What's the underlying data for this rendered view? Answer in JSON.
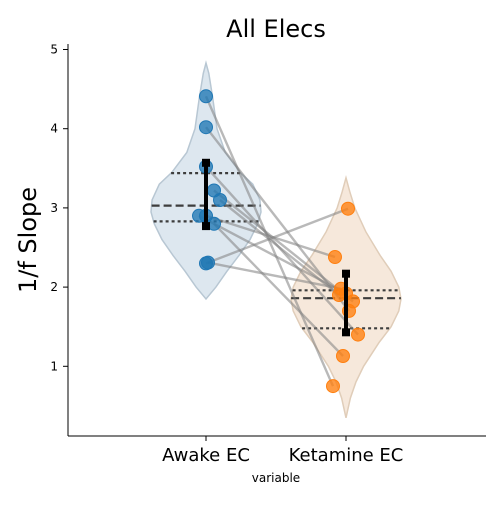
{
  "chart_data": {
    "type": "violin",
    "title": "All Elecs",
    "xlabel": "variable",
    "ylabel": "1/f Slope",
    "ylim": [
      0.12,
      5.07
    ],
    "yticks": [
      1,
      2,
      3,
      4,
      5
    ],
    "categories": [
      "Awake EC",
      "Ketamine EC"
    ],
    "grid": false,
    "colors": {
      "awake": "#1f77b4",
      "ketamine": "#ff7f0e",
      "awake_violin": "#dde7ef",
      "ketamine_violin": "#f6e8db",
      "lines": "#808080"
    },
    "violins": [
      {
        "category": "Awake EC",
        "range": [
          1.85,
          4.83
        ],
        "quartiles": [
          2.83,
          3.03,
          3.44
        ],
        "profile": [
          [
            4.83,
            0.0
          ],
          [
            4.7,
            0.05
          ],
          [
            4.4,
            0.12
          ],
          [
            4.0,
            0.2
          ],
          [
            3.7,
            0.35
          ],
          [
            3.45,
            0.62
          ],
          [
            3.3,
            0.85
          ],
          [
            3.1,
            0.98
          ],
          [
            2.95,
            1.0
          ],
          [
            2.8,
            0.94
          ],
          [
            2.6,
            0.8
          ],
          [
            2.4,
            0.6
          ],
          [
            2.2,
            0.38
          ],
          [
            2.0,
            0.18
          ],
          [
            1.85,
            0.0
          ]
        ]
      },
      {
        "category": "Ketamine EC",
        "range": [
          0.35,
          3.38
        ],
        "quartiles": [
          1.48,
          1.86,
          1.96
        ],
        "profile": [
          [
            3.38,
            0.0
          ],
          [
            3.2,
            0.07
          ],
          [
            3.0,
            0.16
          ],
          [
            2.7,
            0.36
          ],
          [
            2.4,
            0.62
          ],
          [
            2.2,
            0.82
          ],
          [
            2.0,
            0.96
          ],
          [
            1.85,
            1.0
          ],
          [
            1.7,
            0.96
          ],
          [
            1.5,
            0.82
          ],
          [
            1.3,
            0.6
          ],
          [
            1.0,
            0.32
          ],
          [
            0.8,
            0.18
          ],
          [
            0.6,
            0.08
          ],
          [
            0.35,
            0.0
          ]
        ]
      }
    ],
    "series": [
      {
        "category": "Awake EC",
        "values": [
          4.41,
          4.02,
          3.52,
          3.22,
          3.1,
          2.9,
          2.9,
          2.8,
          2.31,
          2.3
        ]
      },
      {
        "category": "Ketamine EC",
        "values": [
          0.75,
          1.7,
          1.4,
          1.82,
          1.9,
          1.92,
          2.38,
          1.13,
          1.98,
          2.99
        ]
      }
    ],
    "error_bars": [
      {
        "category": "Awake EC",
        "center": 3.17,
        "low": 2.77,
        "high": 3.57
      },
      {
        "category": "Ketamine EC",
        "center": 1.8,
        "low": 1.43,
        "high": 2.17
      }
    ]
  }
}
